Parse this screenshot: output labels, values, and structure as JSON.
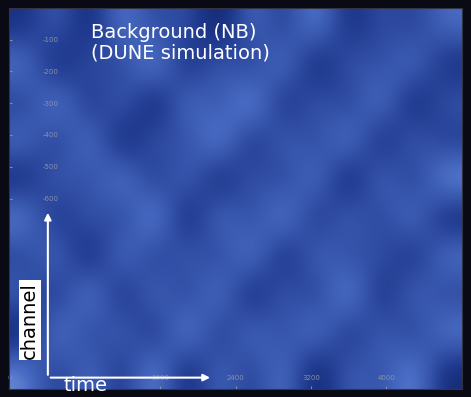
{
  "chart_data": {
    "type": "heatmap",
    "annotations": [
      "Background (NB)",
      "(DUNE simulation)"
    ],
    "xlabel": "time",
    "ylabel": "channel",
    "xlim": [
      0,
      4800
    ],
    "xticks": [
      0,
      1600,
      2400,
      3200,
      4000
    ],
    "ylim": [
      -1200,
      0
    ],
    "yticks": [
      -100,
      -200,
      -300,
      -400,
      -500,
      -600
    ],
    "tick_labels": true,
    "grid": false,
    "cells": [
      [
        0.42,
        0.55,
        0.38,
        0.61,
        0.47,
        0.52,
        0.35,
        0.58,
        0.44,
        0.63,
        0.4,
        0.51,
        0.46,
        0.57
      ],
      [
        0.6,
        0.37,
        0.53,
        0.45,
        0.66,
        0.39,
        0.56,
        0.43,
        0.62,
        0.36,
        0.54,
        0.48,
        0.59,
        0.41
      ],
      [
        0.45,
        0.64,
        0.41,
        0.57,
        0.35,
        0.6,
        0.48,
        0.67,
        0.39,
        0.55,
        0.44,
        0.62,
        0.37,
        0.53
      ],
      [
        0.58,
        0.43,
        0.62,
        0.36,
        0.54,
        0.47,
        0.65,
        0.4,
        0.57,
        0.46,
        0.63,
        0.38,
        0.56,
        0.44
      ],
      [
        0.39,
        0.56,
        0.47,
        0.63,
        0.42,
        0.58,
        0.37,
        0.54,
        0.45,
        0.61,
        0.35,
        0.59,
        0.43,
        0.65
      ],
      [
        0.62,
        0.4,
        0.55,
        0.44,
        0.67,
        0.36,
        0.6,
        0.46,
        0.64,
        0.41,
        0.57,
        0.45,
        0.61,
        0.38
      ],
      [
        0.46,
        0.59,
        0.36,
        0.61,
        0.43,
        0.56,
        0.45,
        0.63,
        0.38,
        0.58,
        0.47,
        0.53,
        0.4,
        0.6
      ],
      [
        0.55,
        0.41,
        0.64,
        0.39,
        0.59,
        0.44,
        0.62,
        0.37,
        0.55,
        0.43,
        0.66,
        0.39,
        0.58,
        0.46
      ],
      [
        0.37,
        0.63,
        0.45,
        0.57,
        0.4,
        0.65,
        0.42,
        0.59,
        0.47,
        0.62,
        0.41,
        0.56,
        0.44,
        0.61
      ],
      [
        0.61,
        0.44,
        0.58,
        0.42,
        0.64,
        0.38,
        0.57,
        0.45,
        0.6,
        0.36,
        0.55,
        0.49,
        0.63,
        0.4
      ]
    ]
  }
}
